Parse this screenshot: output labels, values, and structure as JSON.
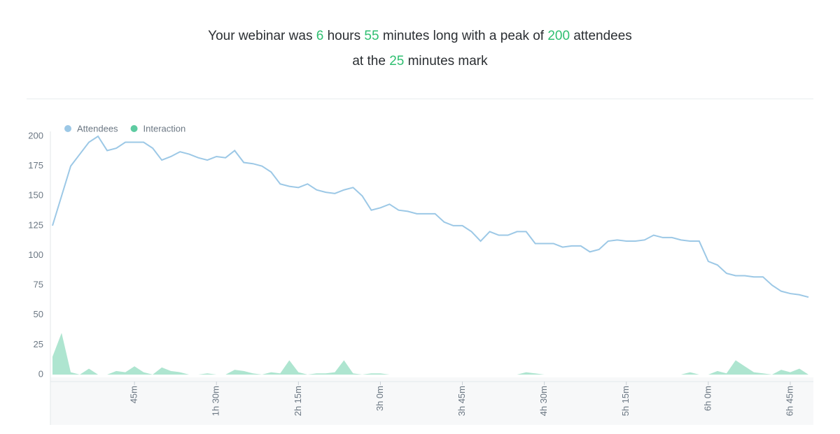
{
  "header": {
    "lines": [
      [
        {
          "text": "Your webinar was "
        },
        {
          "text": "6",
          "emphasis": true
        },
        {
          "text": " hours "
        },
        {
          "text": "55",
          "emphasis": true
        },
        {
          "text": " minutes long with a peak of "
        },
        {
          "text": "200",
          "emphasis": true
        },
        {
          "text": " attendees"
        }
      ],
      [
        {
          "text": "at the "
        },
        {
          "text": "25",
          "emphasis": true
        },
        {
          "text": " minutes mark"
        }
      ]
    ],
    "accent_color": "#2fbf71"
  },
  "chart_data": {
    "type": "line",
    "x": [
      0,
      5,
      10,
      15,
      20,
      25,
      30,
      35,
      40,
      45,
      50,
      55,
      60,
      65,
      70,
      75,
      80,
      85,
      90,
      95,
      100,
      105,
      110,
      115,
      120,
      125,
      130,
      135,
      140,
      145,
      150,
      155,
      160,
      165,
      170,
      175,
      180,
      185,
      190,
      195,
      200,
      205,
      210,
      215,
      220,
      225,
      230,
      235,
      240,
      245,
      250,
      255,
      260,
      265,
      270,
      275,
      280,
      285,
      290,
      295,
      300,
      305,
      310,
      315,
      320,
      325,
      330,
      335,
      340,
      345,
      350,
      355,
      360,
      365,
      370,
      375,
      380,
      385,
      390,
      395,
      400,
      405,
      410,
      415
    ],
    "series": [
      {
        "name": "Attendees",
        "color": "#9cc8e6",
        "kind": "line",
        "values": [
          125,
          150,
          175,
          185,
          195,
          200,
          188,
          190,
          195,
          195,
          195,
          190,
          180,
          183,
          187,
          185,
          182,
          180,
          183,
          182,
          188,
          178,
          177,
          175,
          170,
          160,
          158,
          157,
          160,
          155,
          153,
          152,
          155,
          157,
          150,
          138,
          140,
          143,
          138,
          137,
          135,
          135,
          135,
          128,
          125,
          125,
          120,
          112,
          120,
          117,
          117,
          120,
          120,
          110,
          110,
          110,
          107,
          108,
          108,
          103,
          105,
          112,
          113,
          112,
          112,
          113,
          117,
          115,
          115,
          113,
          112,
          112,
          95,
          92,
          85,
          83,
          83,
          82,
          82,
          75,
          70,
          68,
          67,
          65
        ]
      },
      {
        "name": "Interaction",
        "color": "#5ecba1",
        "kind": "area",
        "values": [
          15,
          35,
          2,
          0,
          5,
          0,
          0,
          3,
          2,
          7,
          2,
          0,
          6,
          3,
          2,
          0,
          0,
          1,
          0,
          0,
          4,
          3,
          1,
          0,
          2,
          1,
          12,
          2,
          0,
          1,
          1,
          2,
          12,
          1,
          0,
          1,
          1,
          0,
          0,
          0,
          0,
          0,
          0,
          0,
          0,
          0,
          0,
          0,
          0,
          0,
          0,
          0,
          2,
          1,
          0,
          0,
          0,
          0,
          0,
          0,
          0,
          0,
          0,
          0,
          0,
          0,
          0,
          0,
          0,
          0,
          2,
          0,
          0,
          3,
          1,
          12,
          7,
          2,
          1,
          0,
          4,
          2,
          5,
          0
        ]
      }
    ],
    "xlim": [
      0,
      415
    ],
    "ylim": [
      0,
      200
    ],
    "yticks": [
      0,
      25,
      50,
      75,
      100,
      125,
      150,
      175,
      200
    ],
    "xticks": [
      {
        "value": 45,
        "label": "45m"
      },
      {
        "value": 90,
        "label": "1h 30m"
      },
      {
        "value": 135,
        "label": "2h 15m"
      },
      {
        "value": 180,
        "label": "3h 0m"
      },
      {
        "value": 225,
        "label": "3h 45m"
      },
      {
        "value": 270,
        "label": "4h 30m"
      },
      {
        "value": 315,
        "label": "5h 15m"
      },
      {
        "value": 360,
        "label": "6h 0m"
      },
      {
        "value": 405,
        "label": "6h 45m"
      }
    ],
    "legend": "top-left",
    "grid": false
  }
}
